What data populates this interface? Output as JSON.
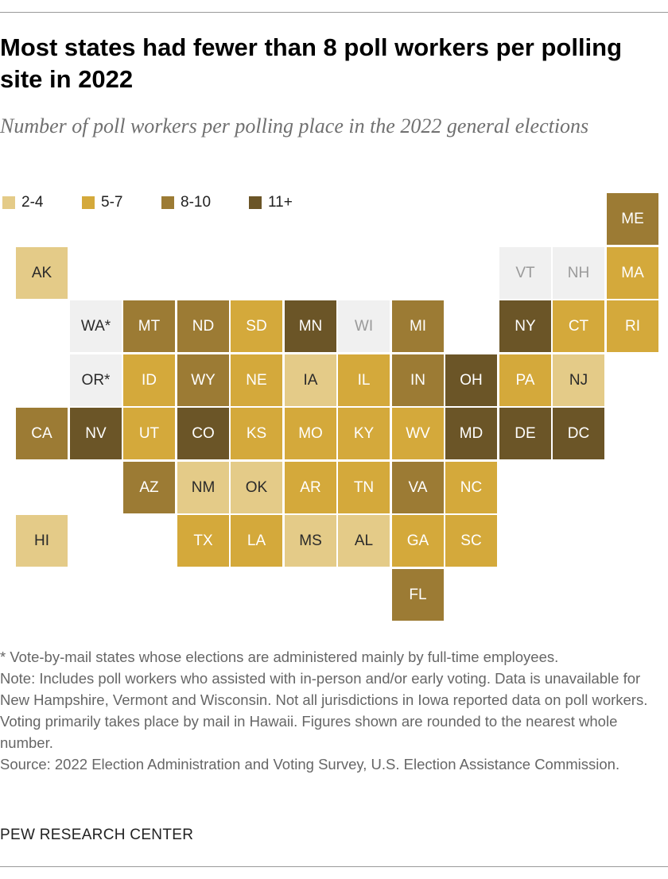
{
  "title": "Most states had fewer than 8 poll workers per polling site in 2022",
  "subtitle": "Number of poll workers per polling place in the 2022 general elections",
  "colors": {
    "2-4": "#e4cb88",
    "5-7": "#d4a93b",
    "8-10": "#9c7b34",
    "11+": "#6b5527",
    "no_data": "#f0f0f0"
  },
  "chart_data": {
    "type": "tile-map",
    "title": "Most states had fewer than 8 poll workers per polling site in 2022",
    "subtitle": "Number of poll workers per polling place in the 2022 general elections",
    "legend": [
      "2-4",
      "5-7",
      "8-10",
      "11+"
    ],
    "legend_placement": "top-left",
    "states": [
      {
        "label": "ME",
        "row": 0,
        "col": 11,
        "category": "8-10"
      },
      {
        "label": "AK",
        "row": 1,
        "col": 0,
        "category": "2-4"
      },
      {
        "label": "VT",
        "row": 1,
        "col": 9,
        "category": "no_data"
      },
      {
        "label": "NH",
        "row": 1,
        "col": 10,
        "category": "no_data"
      },
      {
        "label": "MA",
        "row": 1,
        "col": 11,
        "category": "5-7"
      },
      {
        "label": "WA*",
        "row": 2,
        "col": 1,
        "category": "no_data"
      },
      {
        "label": "MT",
        "row": 2,
        "col": 2,
        "category": "8-10"
      },
      {
        "label": "ND",
        "row": 2,
        "col": 3,
        "category": "8-10"
      },
      {
        "label": "SD",
        "row": 2,
        "col": 4,
        "category": "5-7"
      },
      {
        "label": "MN",
        "row": 2,
        "col": 5,
        "category": "11+"
      },
      {
        "label": "WI",
        "row": 2,
        "col": 6,
        "category": "no_data"
      },
      {
        "label": "MI",
        "row": 2,
        "col": 7,
        "category": "8-10"
      },
      {
        "label": "NY",
        "row": 2,
        "col": 9,
        "category": "11+"
      },
      {
        "label": "CT",
        "row": 2,
        "col": 10,
        "category": "5-7"
      },
      {
        "label": "RI",
        "row": 2,
        "col": 11,
        "category": "5-7"
      },
      {
        "label": "OR*",
        "row": 3,
        "col": 1,
        "category": "no_data"
      },
      {
        "label": "ID",
        "row": 3,
        "col": 2,
        "category": "5-7"
      },
      {
        "label": "WY",
        "row": 3,
        "col": 3,
        "category": "8-10"
      },
      {
        "label": "NE",
        "row": 3,
        "col": 4,
        "category": "5-7"
      },
      {
        "label": "IA",
        "row": 3,
        "col": 5,
        "category": "2-4"
      },
      {
        "label": "IL",
        "row": 3,
        "col": 6,
        "category": "5-7"
      },
      {
        "label": "IN",
        "row": 3,
        "col": 7,
        "category": "8-10"
      },
      {
        "label": "OH",
        "row": 3,
        "col": 8,
        "category": "11+"
      },
      {
        "label": "PA",
        "row": 3,
        "col": 9,
        "category": "5-7"
      },
      {
        "label": "NJ",
        "row": 3,
        "col": 10,
        "category": "2-4"
      },
      {
        "label": "CA",
        "row": 4,
        "col": 0,
        "category": "8-10"
      },
      {
        "label": "NV",
        "row": 4,
        "col": 1,
        "category": "11+"
      },
      {
        "label": "UT",
        "row": 4,
        "col": 2,
        "category": "5-7"
      },
      {
        "label": "CO",
        "row": 4,
        "col": 3,
        "category": "11+"
      },
      {
        "label": "KS",
        "row": 4,
        "col": 4,
        "category": "5-7"
      },
      {
        "label": "MO",
        "row": 4,
        "col": 5,
        "category": "5-7"
      },
      {
        "label": "KY",
        "row": 4,
        "col": 6,
        "category": "5-7"
      },
      {
        "label": "WV",
        "row": 4,
        "col": 7,
        "category": "5-7"
      },
      {
        "label": "MD",
        "row": 4,
        "col": 8,
        "category": "11+"
      },
      {
        "label": "DE",
        "row": 4,
        "col": 9,
        "category": "11+"
      },
      {
        "label": "DC",
        "row": 4,
        "col": 10,
        "category": "11+"
      },
      {
        "label": "AZ",
        "row": 5,
        "col": 2,
        "category": "8-10"
      },
      {
        "label": "NM",
        "row": 5,
        "col": 3,
        "category": "2-4"
      },
      {
        "label": "OK",
        "row": 5,
        "col": 4,
        "category": "2-4"
      },
      {
        "label": "AR",
        "row": 5,
        "col": 5,
        "category": "5-7"
      },
      {
        "label": "TN",
        "row": 5,
        "col": 6,
        "category": "5-7"
      },
      {
        "label": "VA",
        "row": 5,
        "col": 7,
        "category": "8-10"
      },
      {
        "label": "NC",
        "row": 5,
        "col": 8,
        "category": "5-7"
      },
      {
        "label": "HI",
        "row": 6,
        "col": 0,
        "category": "2-4"
      },
      {
        "label": "TX",
        "row": 6,
        "col": 3,
        "category": "5-7"
      },
      {
        "label": "LA",
        "row": 6,
        "col": 4,
        "category": "5-7"
      },
      {
        "label": "MS",
        "row": 6,
        "col": 5,
        "category": "2-4"
      },
      {
        "label": "AL",
        "row": 6,
        "col": 6,
        "category": "2-4"
      },
      {
        "label": "GA",
        "row": 6,
        "col": 7,
        "category": "5-7"
      },
      {
        "label": "SC",
        "row": 6,
        "col": 8,
        "category": "5-7"
      },
      {
        "label": "FL",
        "row": 7,
        "col": 7,
        "category": "8-10"
      }
    ]
  },
  "notes": [
    "* Vote-by-mail states whose elections are administered mainly by full-time employees.",
    "Note: Includes poll workers who assisted with in-person and/or early voting. Data is unavailable for New Hampshire, Vermont and Wisconsin. Not all jurisdictions in Iowa reported data on poll workers. Voting primarily takes place by mail in Hawaii. Figures shown are rounded to the nearest whole number.",
    "Source: 2022 Election Administration and Voting Survey, U.S. Election Assistance Commission."
  ],
  "source_org": "PEW RESEARCH CENTER"
}
